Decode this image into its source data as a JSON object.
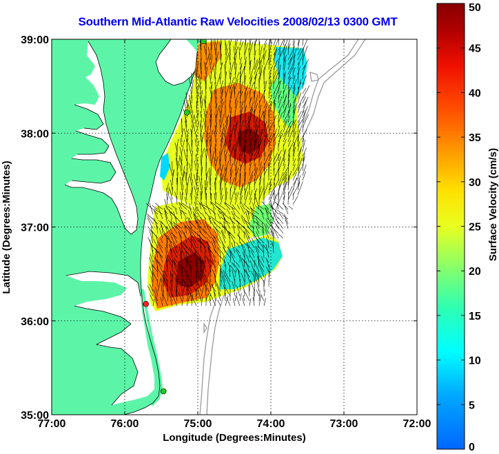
{
  "title": "Southern Mid-Atlantic Raw Velocities 2008/02/13 0300 GMT",
  "map": {
    "x_axis": {
      "label": "Longitude (Degrees:Minutes)",
      "range": [
        -77,
        -72
      ],
      "ticks": [
        {
          "value": -77,
          "label": "77:00"
        },
        {
          "value": -76,
          "label": "76:00"
        },
        {
          "value": -75,
          "label": "75:00"
        },
        {
          "value": -74,
          "label": "74:00"
        },
        {
          "value": -73,
          "label": "73:00"
        },
        {
          "value": -72,
          "label": "72:00"
        }
      ]
    },
    "y_axis": {
      "label": "Latitude (Degrees:Minutes)",
      "range": [
        35,
        39
      ],
      "ticks": [
        {
          "value": 35,
          "label": "35:00"
        },
        {
          "value": 36,
          "label": "36:00"
        },
        {
          "value": 37,
          "label": "37:00"
        },
        {
          "value": 38,
          "label": "38:00"
        },
        {
          "value": 39,
          "label": "39:00"
        }
      ]
    },
    "grid": "dotted",
    "land_color": "#5cf5a8",
    "water_color": "#ffffff",
    "isobath_color": "#999999",
    "stations": [
      {
        "lon": -74.92,
        "lat": 38.98,
        "color": "#22cc22"
      },
      {
        "lon": -75.15,
        "lat": 38.22,
        "color": "#22cc22"
      },
      {
        "lon": -75.71,
        "lat": 36.18,
        "color": "#ff2222"
      },
      {
        "lon": -75.47,
        "lat": 35.25,
        "color": "#22cc22"
      }
    ]
  },
  "colorbar": {
    "label": "Surface Velocity (cm/s)",
    "min": 0,
    "max": 50,
    "ticks": [
      {
        "value": 0,
        "label": "0"
      },
      {
        "value": 5,
        "label": "5"
      },
      {
        "value": 10,
        "label": "10"
      },
      {
        "value": 15,
        "label": "15"
      },
      {
        "value": 20,
        "label": "20"
      },
      {
        "value": 25,
        "label": "25"
      },
      {
        "value": 30,
        "label": "30"
      },
      {
        "value": 35,
        "label": "35"
      },
      {
        "value": 40,
        "label": "40"
      },
      {
        "value": 45,
        "label": "45"
      },
      {
        "value": 50,
        "label": "50"
      }
    ]
  }
}
